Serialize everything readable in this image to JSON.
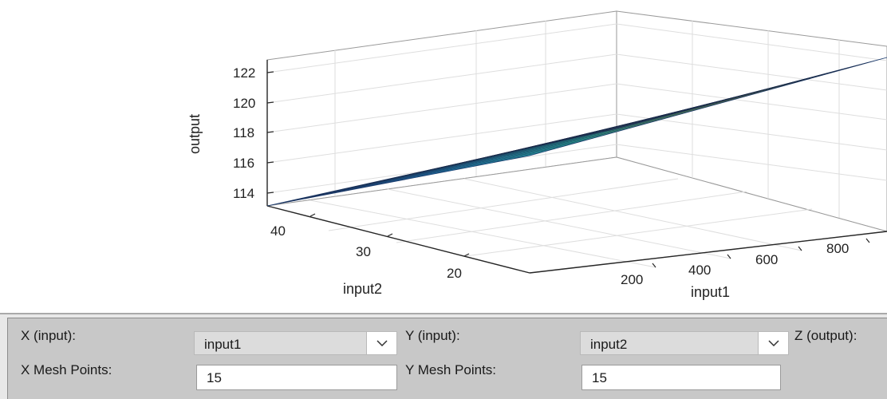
{
  "plot": {
    "zlabel": "output",
    "xlabel": "input1",
    "ylabel": "input2",
    "z_ticks": [
      "114",
      "116",
      "118",
      "120",
      "122"
    ],
    "y_ticks": [
      "40",
      "30",
      "20"
    ],
    "x_ticks": [
      "200",
      "400",
      "600",
      "800"
    ]
  },
  "chart_data": {
    "type": "surface",
    "title": "",
    "xlabel": "input1",
    "ylabel": "input2",
    "zlabel": "output",
    "x_range": [
      100,
      1000
    ],
    "y_range": [
      15,
      45
    ],
    "z_range": [
      113,
      123
    ],
    "x_ticks": [
      200,
      400,
      600,
      800
    ],
    "y_ticks": [
      20,
      30,
      40
    ],
    "z_ticks": [
      114,
      116,
      118,
      120,
      122
    ],
    "mesh_points": [
      15,
      15
    ],
    "colormap": "parula",
    "grid": true,
    "surface_corners": [
      {
        "input1": 100,
        "input2": 45,
        "output": 113.2
      },
      {
        "input1": 100,
        "input2": 15,
        "output": 116.6
      },
      {
        "input1": 1000,
        "input2": 45,
        "output": 118.4
      },
      {
        "input1": 1000,
        "input2": 15,
        "output": 122.0
      }
    ]
  },
  "controls": {
    "x_input_label": "X (input):",
    "x_input_value": "input1",
    "y_input_label": "Y (input):",
    "y_input_value": "input2",
    "z_output_label": "Z (output):",
    "x_mesh_label": "X Mesh Points:",
    "x_mesh_value": "15",
    "y_mesh_label": "Y Mesh Points:",
    "y_mesh_value": "15"
  },
  "colors": {
    "surface_low": "#1f6fb5",
    "surface_mid": "#2db7a6",
    "surface_high": "#f0e63c",
    "grid": "#dcdcdc",
    "axis": "#262626"
  }
}
